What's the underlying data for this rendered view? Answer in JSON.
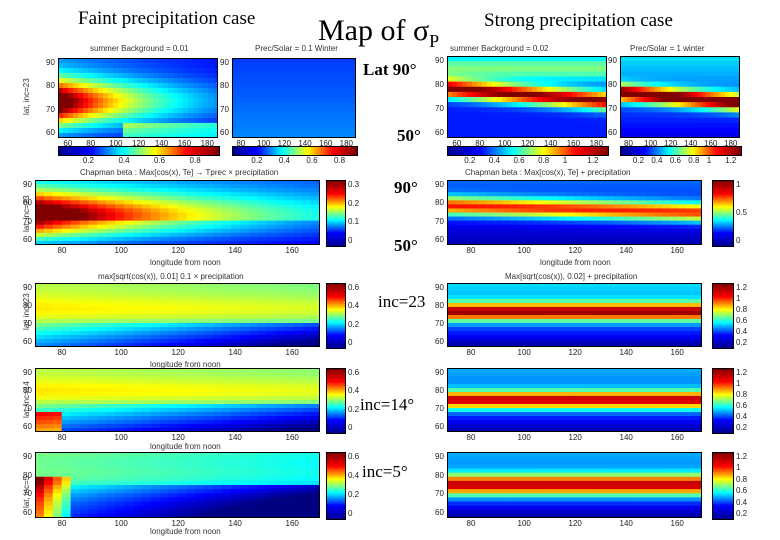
{
  "header": {
    "faint_title": "Faint precipitation case",
    "main_title": "Map of σ",
    "main_sub": "P",
    "strong_title": "Strong precipitation case"
  },
  "labels": {
    "lat90": "Lat 90°",
    "lat50a": "50°",
    "lat90b": "90°",
    "lat50b": "50°",
    "inc23": "inc=23",
    "inc14": "inc=14°",
    "inc5": "inc=5°"
  },
  "panels": {
    "r1_a_title": "summer    Background = 0.01",
    "r1_b_title": "Prec/Solar = 0.1      Winter",
    "r1_c_title": "summer   Background = 0.02",
    "r1_d_title": "Prec/Solar = 1     winter",
    "r2_a_title": "Chapman beta : Max[cos(x), Te] → Tprec × precipitation",
    "r2_c_title": "Chapman beta : Max[cos(x), Te] + precipitation",
    "r3_a_title": "max[sqrt(cos(x)), 0.01]            0.1 × precipitation",
    "r3_c_title": "Max[sqrt(cos(x)), 0.02]       +      precipitation",
    "ylabel_r1": "lat, inc=23",
    "ylabel_r2": "lat, inc=23",
    "ylabel_r3": "lat, inc=23",
    "ylabel_r4": "lat, inc=14",
    "ylabel_r5": "lat, inc=5",
    "xlabel": "longitude from noon"
  },
  "colorscales": {
    "hbar_a_ticks": [
      "0.2",
      "0.4",
      "0.6",
      "0.8"
    ],
    "hbar_b_ticks": [
      "0.2",
      "0.4",
      "0.6",
      "0.8"
    ],
    "hbar_c_ticks": [
      "0.2",
      "0.4",
      "0.6",
      "0.8",
      "1",
      "1.2"
    ],
    "hbar_d_ticks": [
      "0.2",
      "0.4",
      "0.6",
      "0.8",
      "1",
      "1.2"
    ],
    "r2_faint_ticks": [
      "0.3",
      "0.2",
      "0.1",
      "0"
    ],
    "r2_strong_ticks": [
      "1",
      "0.5",
      "0"
    ],
    "r3_faint_ticks": [
      "0.6",
      "0.4",
      "0.2",
      "0"
    ],
    "r3_strong_ticks": [
      "1.2",
      "1",
      "0.8",
      "0.6",
      "0.4",
      "0.2"
    ],
    "r4_faint_ticks": [
      "0.6",
      "0.4",
      "0.2",
      "0"
    ],
    "r4_strong_ticks": [
      "1.2",
      "1",
      "0.8",
      "0.6",
      "0.4",
      "0.2"
    ],
    "r5_faint_ticks": [
      "0.6",
      "0.4",
      "0.2",
      "0"
    ],
    "r5_strong_ticks": [
      "1.2",
      "1",
      "0.8",
      "0.6",
      "0.4",
      "0.2"
    ]
  },
  "chart_data": [
    {
      "type": "heatmap",
      "title": "summer Background = 0.01",
      "x_ticks": [
        "60",
        "80",
        "100",
        "120",
        "140",
        "160",
        "180"
      ],
      "y_ticks": [
        "90",
        "80",
        "70",
        "60"
      ],
      "ylabel": "lat, inc=23"
    },
    {
      "type": "heatmap",
      "title": "Prec/Solar = 0.1 Winter",
      "x_ticks": [
        "80",
        "100",
        "120",
        "140",
        "160",
        "180"
      ],
      "y_ticks": [
        "90",
        "80",
        "70",
        "60"
      ],
      "ylabel": "lat, inc=23"
    },
    {
      "type": "heatmap",
      "title": "summer Background = 0.02",
      "x_ticks": [
        "60",
        "80",
        "100",
        "120",
        "140",
        "160",
        "180"
      ],
      "y_ticks": [
        "90",
        "80",
        "70",
        "60"
      ],
      "ylabel": "lat, inc=23"
    },
    {
      "type": "heatmap",
      "title": "Prec/Solar = 1 winter",
      "x_ticks": [
        "80",
        "100",
        "120",
        "140",
        "160",
        "180"
      ],
      "y_ticks": [
        "90",
        "80",
        "70",
        "60"
      ],
      "ylabel": "lat, inc=23"
    },
    {
      "type": "heatmap",
      "x_ticks": [
        "80",
        "100",
        "120",
        "140",
        "160"
      ],
      "y_ticks": [
        "90",
        "80",
        "70",
        "60"
      ],
      "ylabel": "lat, inc=23",
      "colorbar": [
        0,
        0.3
      ]
    },
    {
      "type": "heatmap",
      "x_ticks": [
        "80",
        "100",
        "120",
        "140",
        "160"
      ],
      "y_ticks": [
        "90",
        "80",
        "70",
        "60"
      ],
      "colorbar": [
        0,
        1.1
      ]
    },
    {
      "type": "heatmap",
      "x_ticks": [
        "80",
        "100",
        "120",
        "140",
        "160"
      ],
      "y_ticks": [
        "90",
        "80",
        "70",
        "60"
      ],
      "ylabel": "lat, inc=23",
      "colorbar": [
        0,
        0.6
      ]
    },
    {
      "type": "heatmap",
      "x_ticks": [
        "80",
        "100",
        "120",
        "140",
        "160"
      ],
      "y_ticks": [
        "90",
        "80",
        "70",
        "60"
      ],
      "colorbar": [
        0.2,
        1.2
      ]
    },
    {
      "type": "heatmap",
      "x_ticks": [
        "80",
        "100",
        "120",
        "140",
        "160"
      ],
      "y_ticks": [
        "90",
        "80",
        "70",
        "60"
      ],
      "ylabel": "lat, inc=14",
      "colorbar": [
        0,
        0.6
      ]
    },
    {
      "type": "heatmap",
      "x_ticks": [
        "80",
        "100",
        "120",
        "140",
        "160"
      ],
      "y_ticks": [
        "90",
        "80",
        "70",
        "60"
      ],
      "colorbar": [
        0.2,
        1.2
      ]
    },
    {
      "type": "heatmap",
      "x_ticks": [
        "80",
        "100",
        "120",
        "140",
        "160"
      ],
      "y_ticks": [
        "90",
        "80",
        "70",
        "60"
      ],
      "ylabel": "lat, inc=5",
      "colorbar": [
        0,
        0.6
      ]
    },
    {
      "type": "heatmap",
      "x_ticks": [
        "80",
        "100",
        "120",
        "140",
        "160"
      ],
      "y_ticks": [
        "90",
        "80",
        "70",
        "60"
      ],
      "colorbar": [
        0.2,
        1.2
      ]
    }
  ]
}
